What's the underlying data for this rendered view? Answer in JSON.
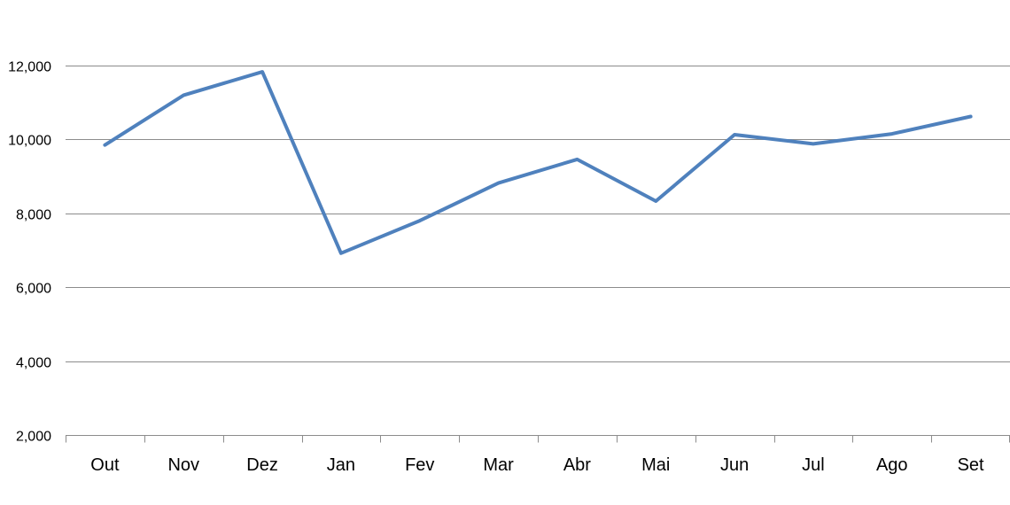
{
  "chart_data": {
    "type": "line",
    "categories": [
      "Out",
      "Nov",
      "Dez",
      "Jan",
      "Fev",
      "Mar",
      "Abr",
      "Mai",
      "Jun",
      "Jul",
      "Ago",
      "Set"
    ],
    "series": [
      {
        "values": [
          9850,
          11200,
          11830,
          6920,
          7800,
          8820,
          9460,
          8330,
          10130,
          9880,
          10150,
          10620
        ]
      }
    ],
    "ylim": [
      2000,
      12000
    ],
    "yticks": [
      2000,
      4000,
      6000,
      8000,
      10000,
      12000
    ],
    "ytick_labels": [
      "2,000",
      "4,000",
      "6,000",
      "8,000",
      "10,000",
      "12,000"
    ],
    "grid": true,
    "legend": "none",
    "colors": {
      "line": "#4f81bd",
      "grid": "#8c8c8c",
      "axis": "#8c8c8c"
    }
  }
}
